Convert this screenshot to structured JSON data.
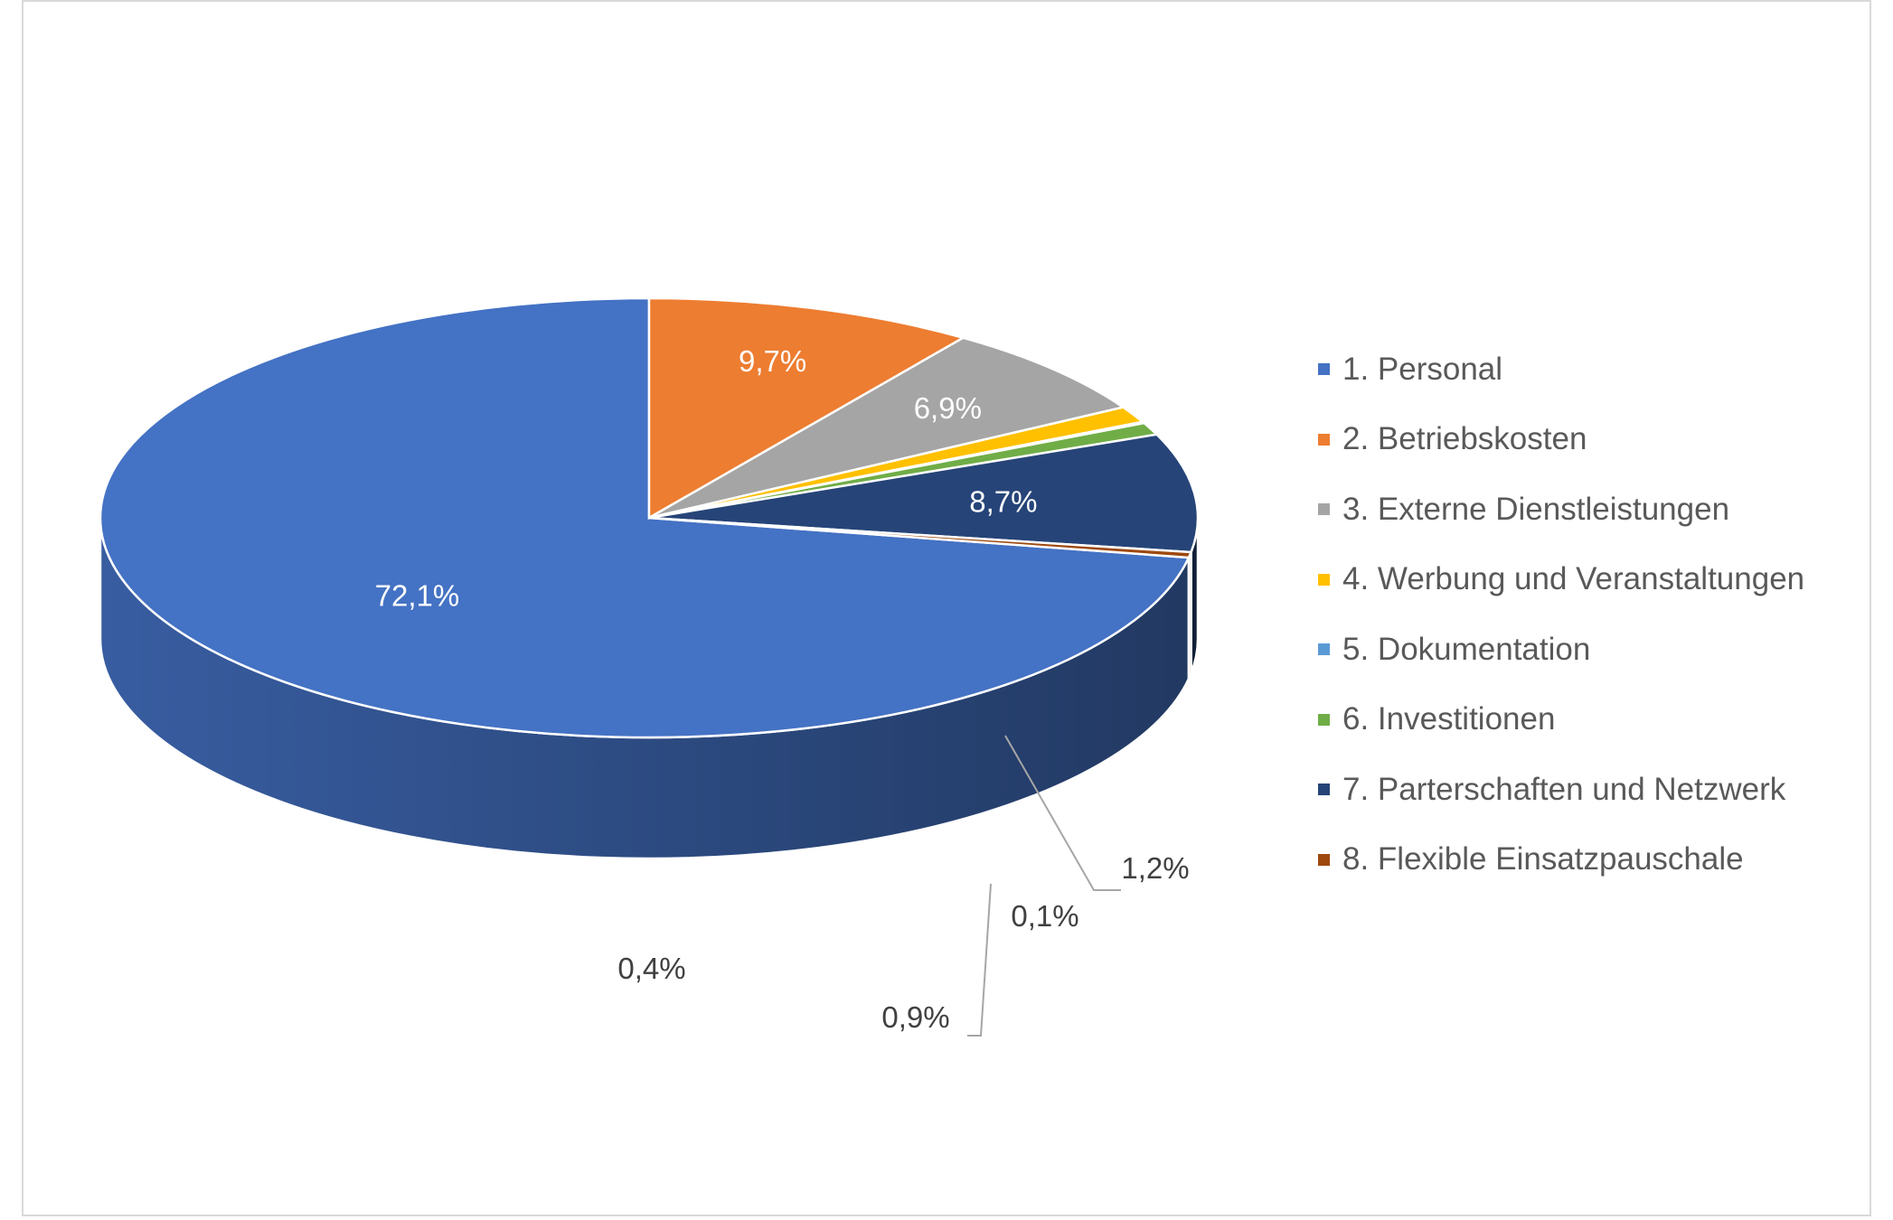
{
  "chart_data": {
    "type": "pie",
    "style": "3d",
    "title": "",
    "legend_position": "right",
    "slices": [
      {
        "label": "1. Personal",
        "value": 72.1,
        "display": "72,1%",
        "color": "#4472C4"
      },
      {
        "label": "2. Betriebskosten",
        "value": 9.7,
        "display": "9,7%",
        "color": "#ED7D31"
      },
      {
        "label": "3. Externe Dienstleistungen",
        "value": 6.9,
        "display": "6,9%",
        "color": "#A5A5A5"
      },
      {
        "label": "4. Werbung und Veranstaltungen",
        "value": 1.2,
        "display": "1,2%",
        "color": "#FFC000"
      },
      {
        "label": "5. Dokumentation",
        "value": 0.1,
        "display": "0,1%",
        "color": "#5B9BD5"
      },
      {
        "label": "6. Investitionen",
        "value": 0.9,
        "display": "0,9%",
        "color": "#70AD47"
      },
      {
        "label": "7. Parterschaften und Netzwerk",
        "value": 8.7,
        "display": "8,7%",
        "color": "#264478"
      },
      {
        "label": "8. Flexible Einsatzpauschale",
        "value": 0.4,
        "display": "0,4%",
        "color": "#9E480E"
      }
    ]
  }
}
